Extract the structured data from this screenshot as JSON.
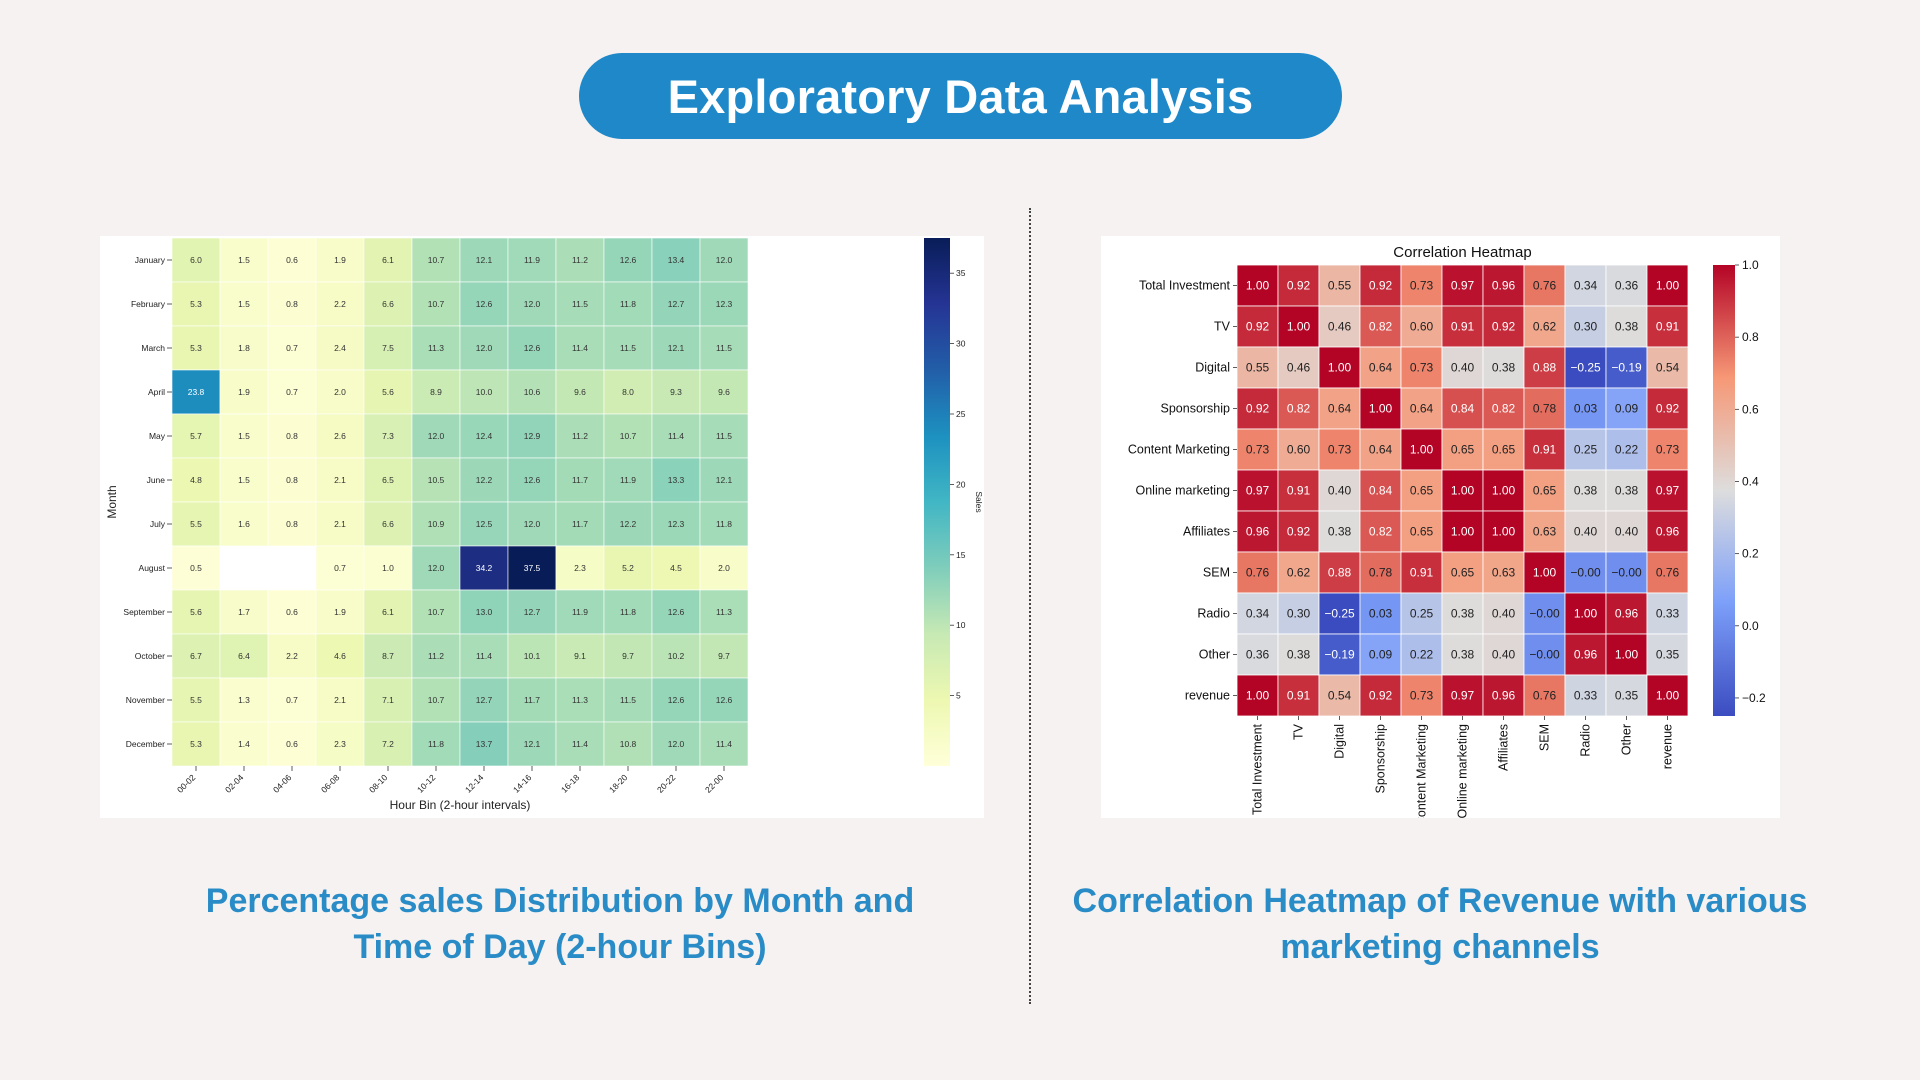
{
  "page": {
    "title": "Exploratory Data Analysis",
    "caption_left": "Percentage sales Distribution by Month and Time of Day (2-hour Bins)",
    "caption_right": "Correlation Heatmap of Revenue with various marketing channels",
    "colors": {
      "accent": "#1e88c8",
      "caption": "#2a8cc7",
      "background": "#f5f2f1"
    }
  },
  "chart_data": [
    {
      "type": "heatmap",
      "title": "",
      "xlabel": "Hour Bin (2-hour intervals)",
      "ylabel": "Month",
      "colorbar_label": "Sales",
      "colormap": "YlGnBu",
      "vmin": 0,
      "vmax": 37.5,
      "colorbar_ticks": [
        5,
        10,
        15,
        20,
        25,
        30,
        35
      ],
      "x_categories": [
        "00-02",
        "02-04",
        "04-06",
        "06-08",
        "08-10",
        "10-12",
        "12-14",
        "14-16",
        "16-18",
        "18-20",
        "20-22",
        "22-00"
      ],
      "y_categories": [
        "January",
        "February",
        "March",
        "April",
        "May",
        "June",
        "July",
        "August",
        "September",
        "October",
        "November",
        "December"
      ],
      "values": [
        [
          6.0,
          1.5,
          0.6,
          1.9,
          6.1,
          10.7,
          12.1,
          11.9,
          11.2,
          12.6,
          13.4,
          12.0
        ],
        [
          5.3,
          1.5,
          0.8,
          2.2,
          6.6,
          10.7,
          12.6,
          12.0,
          11.5,
          11.8,
          12.7,
          12.3
        ],
        [
          5.3,
          1.8,
          0.7,
          2.4,
          7.5,
          11.3,
          12.0,
          12.6,
          11.4,
          11.5,
          12.1,
          11.5
        ],
        [
          23.8,
          1.9,
          0.7,
          2.0,
          5.6,
          8.9,
          10.0,
          10.6,
          9.6,
          8.0,
          9.3,
          9.6
        ],
        [
          5.7,
          1.5,
          0.8,
          2.6,
          7.3,
          12.0,
          12.4,
          12.9,
          11.2,
          10.7,
          11.4,
          11.5
        ],
        [
          4.8,
          1.5,
          0.8,
          2.1,
          6.5,
          10.5,
          12.2,
          12.6,
          11.7,
          11.9,
          13.3,
          12.1
        ],
        [
          5.5,
          1.6,
          0.8,
          2.1,
          6.6,
          10.9,
          12.5,
          12.0,
          11.7,
          12.2,
          12.3,
          11.8
        ],
        [
          0.5,
          null,
          null,
          0.7,
          1.0,
          12.0,
          34.2,
          37.5,
          2.3,
          5.2,
          4.5,
          2.0
        ],
        [
          5.6,
          1.7,
          0.6,
          1.9,
          6.1,
          10.7,
          13.0,
          12.7,
          11.9,
          11.8,
          12.6,
          11.3
        ],
        [
          6.7,
          6.4,
          2.2,
          4.6,
          8.7,
          11.2,
          11.4,
          10.1,
          9.1,
          9.7,
          10.2,
          9.7
        ],
        [
          5.5,
          1.3,
          0.7,
          2.1,
          7.1,
          10.7,
          12.7,
          11.7,
          11.3,
          11.5,
          12.6,
          12.6
        ],
        [
          5.3,
          1.4,
          0.6,
          2.3,
          7.2,
          11.8,
          13.7,
          12.1,
          11.4,
          10.8,
          12.0,
          11.4
        ]
      ]
    },
    {
      "type": "heatmap",
      "title": "Correlation Heatmap",
      "xlabel": "",
      "ylabel": "",
      "colormap": "coolwarm",
      "vmin": -0.25,
      "vmax": 1.0,
      "colorbar_ticks": [
        -0.2,
        0.0,
        0.2,
        0.4,
        0.6,
        0.8,
        1.0
      ],
      "colorbar_tick_labels": [
        "−0.2",
        "0.0",
        "0.2",
        "0.4",
        "0.6",
        "0.8",
        "1.0"
      ],
      "categories": [
        "Total Investment",
        "TV",
        "Digital",
        "Sponsorship",
        "Content Marketing",
        "Online marketing",
        "Affiliates",
        "SEM",
        "Radio",
        "Other",
        "revenue"
      ],
      "values": [
        [
          "1.00",
          "0.92",
          "0.55",
          "0.92",
          "0.73",
          "0.97",
          "0.96",
          "0.76",
          "0.34",
          "0.36",
          "1.00"
        ],
        [
          "0.92",
          "1.00",
          "0.46",
          "0.82",
          "0.60",
          "0.91",
          "0.92",
          "0.62",
          "0.30",
          "0.38",
          "0.91"
        ],
        [
          "0.55",
          "0.46",
          "1.00",
          "0.64",
          "0.73",
          "0.40",
          "0.38",
          "0.88",
          "-0.25",
          "-0.19",
          "0.54"
        ],
        [
          "0.92",
          "0.82",
          "0.64",
          "1.00",
          "0.64",
          "0.84",
          "0.82",
          "0.78",
          "0.03",
          "0.09",
          "0.92"
        ],
        [
          "0.73",
          "0.60",
          "0.73",
          "0.64",
          "1.00",
          "0.65",
          "0.65",
          "0.91",
          "0.25",
          "0.22",
          "0.73"
        ],
        [
          "0.97",
          "0.91",
          "0.40",
          "0.84",
          "0.65",
          "1.00",
          "1.00",
          "0.65",
          "0.38",
          "0.38",
          "0.97"
        ],
        [
          "0.96",
          "0.92",
          "0.38",
          "0.82",
          "0.65",
          "1.00",
          "1.00",
          "0.63",
          "0.40",
          "0.40",
          "0.96"
        ],
        [
          "0.76",
          "0.62",
          "0.88",
          "0.78",
          "0.91",
          "0.65",
          "0.63",
          "1.00",
          "-0.00",
          "-0.00",
          "0.76"
        ],
        [
          "0.34",
          "0.30",
          "-0.25",
          "0.03",
          "0.25",
          "0.38",
          "0.40",
          "-0.00",
          "1.00",
          "0.96",
          "0.33"
        ],
        [
          "0.36",
          "0.38",
          "-0.19",
          "0.09",
          "0.22",
          "0.38",
          "0.40",
          "-0.00",
          "0.96",
          "1.00",
          "0.35"
        ],
        [
          "1.00",
          "0.91",
          "0.54",
          "0.92",
          "0.73",
          "0.97",
          "0.96",
          "0.76",
          "0.33",
          "0.35",
          "1.00"
        ]
      ]
    }
  ]
}
